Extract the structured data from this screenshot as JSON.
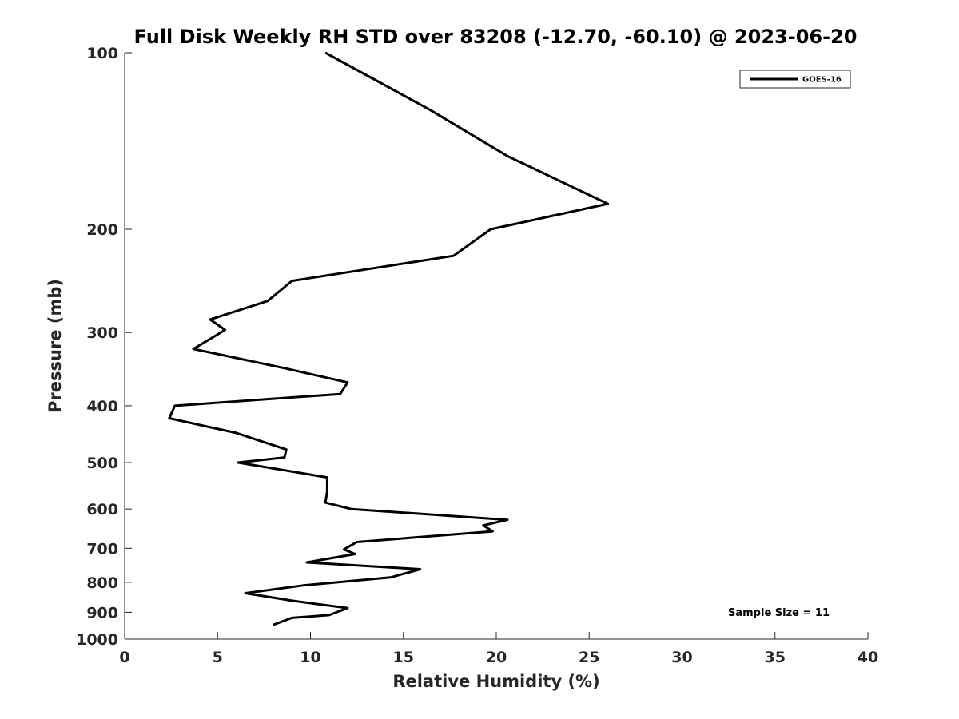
{
  "chart_data": {
    "type": "line",
    "title": "Full Disk Weekly RH STD over 83208 (-12.70, -60.10) @ 2023-06-20",
    "xlabel": "Relative Humidity (%)",
    "ylabel": "Pressure (mb)",
    "xlim": [
      0,
      40
    ],
    "ylim": [
      100,
      1000
    ],
    "y_scale": "log",
    "y_direction": "reversed",
    "grid": false,
    "legend_position": "top-right",
    "x_ticks": [
      "0",
      "5",
      "10",
      "15",
      "20",
      "25",
      "30",
      "35",
      "40"
    ],
    "y_ticks": [
      "100",
      "200",
      "300",
      "400",
      "500",
      "600",
      "700",
      "800",
      "900",
      "1000"
    ],
    "series": [
      {
        "name": "GOES-16",
        "color": "#000000",
        "x": [
          10.8,
          16.4,
          20.6,
          26.0,
          19.7,
          17.7,
          9.0,
          7.7,
          4.6,
          5.4,
          3.7,
          8.6,
          12.0,
          11.6,
          2.7,
          2.4,
          6.0,
          8.7,
          8.6,
          6.1,
          10.9,
          10.9,
          10.8,
          12.2,
          20.6,
          19.3,
          19.8,
          12.5,
          11.8,
          12.4,
          9.8,
          15.9,
          14.3,
          9.6,
          6.5,
          9.0,
          12.0,
          11.0,
          9.0,
          8.4,
          8.0
        ],
        "y": [
          100,
          125,
          150,
          181,
          200,
          222,
          245,
          265,
          285,
          297,
          320,
          345,
          365,
          382,
          400,
          420,
          445,
          475,
          490,
          500,
          530,
          560,
          585,
          600,
          626,
          640,
          655,
          683,
          703,
          716,
          740,
          760,
          785,
          810,
          835,
          860,
          885,
          910,
          920,
          935,
          945
        ]
      }
    ],
    "annotations": [
      "Sample Size = 11"
    ]
  }
}
